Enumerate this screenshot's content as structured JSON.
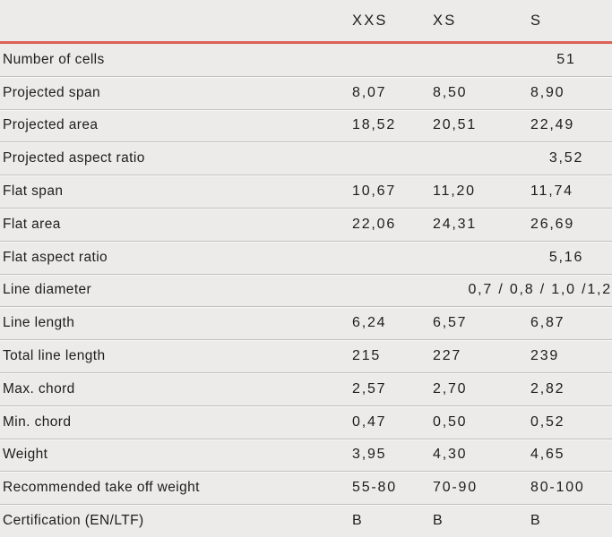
{
  "colors": {
    "background": "#ECEBE9",
    "text": "#1D1D1B",
    "accent_line": "#DB6156",
    "separator": "#C1C0BE"
  },
  "table": {
    "header": {
      "columns": [
        "XXS",
        "XS",
        "S"
      ]
    },
    "rows": [
      {
        "label": "Number of cells",
        "span_value": "51"
      },
      {
        "label": "Projected span",
        "values": [
          "8,07",
          "8,50",
          "8,90"
        ]
      },
      {
        "label": "Projected area",
        "values": [
          "18,52",
          "20,51",
          "22,49"
        ]
      },
      {
        "label": "Projected aspect ratio",
        "span_value": "3,52"
      },
      {
        "label": "Flat span",
        "values": [
          "10,67",
          "11,20",
          "11,74"
        ]
      },
      {
        "label": "Flat area",
        "values": [
          "22,06",
          "24,31",
          "26,69"
        ]
      },
      {
        "label": "Flat aspect ratio",
        "span_value": "5,16"
      },
      {
        "label": "Line diameter",
        "span_value": "0,7 / 0,8 / 1,0 /1,2"
      },
      {
        "label": "Line length",
        "values": [
          "6,24",
          "6,57",
          "6,87"
        ]
      },
      {
        "label": "Total line length",
        "values": [
          "215",
          "227",
          "239"
        ]
      },
      {
        "label": "Max. chord",
        "values": [
          "2,57",
          "2,70",
          "2,82"
        ]
      },
      {
        "label": "Min. chord",
        "values": [
          "0,47",
          "0,50",
          "0,52"
        ]
      },
      {
        "label": "Weight",
        "values": [
          "3,95",
          "4,30",
          "4,65"
        ]
      },
      {
        "label": "Recommended take off weight",
        "values": [
          "55-80",
          "70-90",
          "80-100"
        ]
      },
      {
        "label": "Certification (EN/LTF)",
        "values": [
          "B",
          "B",
          "B"
        ]
      }
    ]
  }
}
